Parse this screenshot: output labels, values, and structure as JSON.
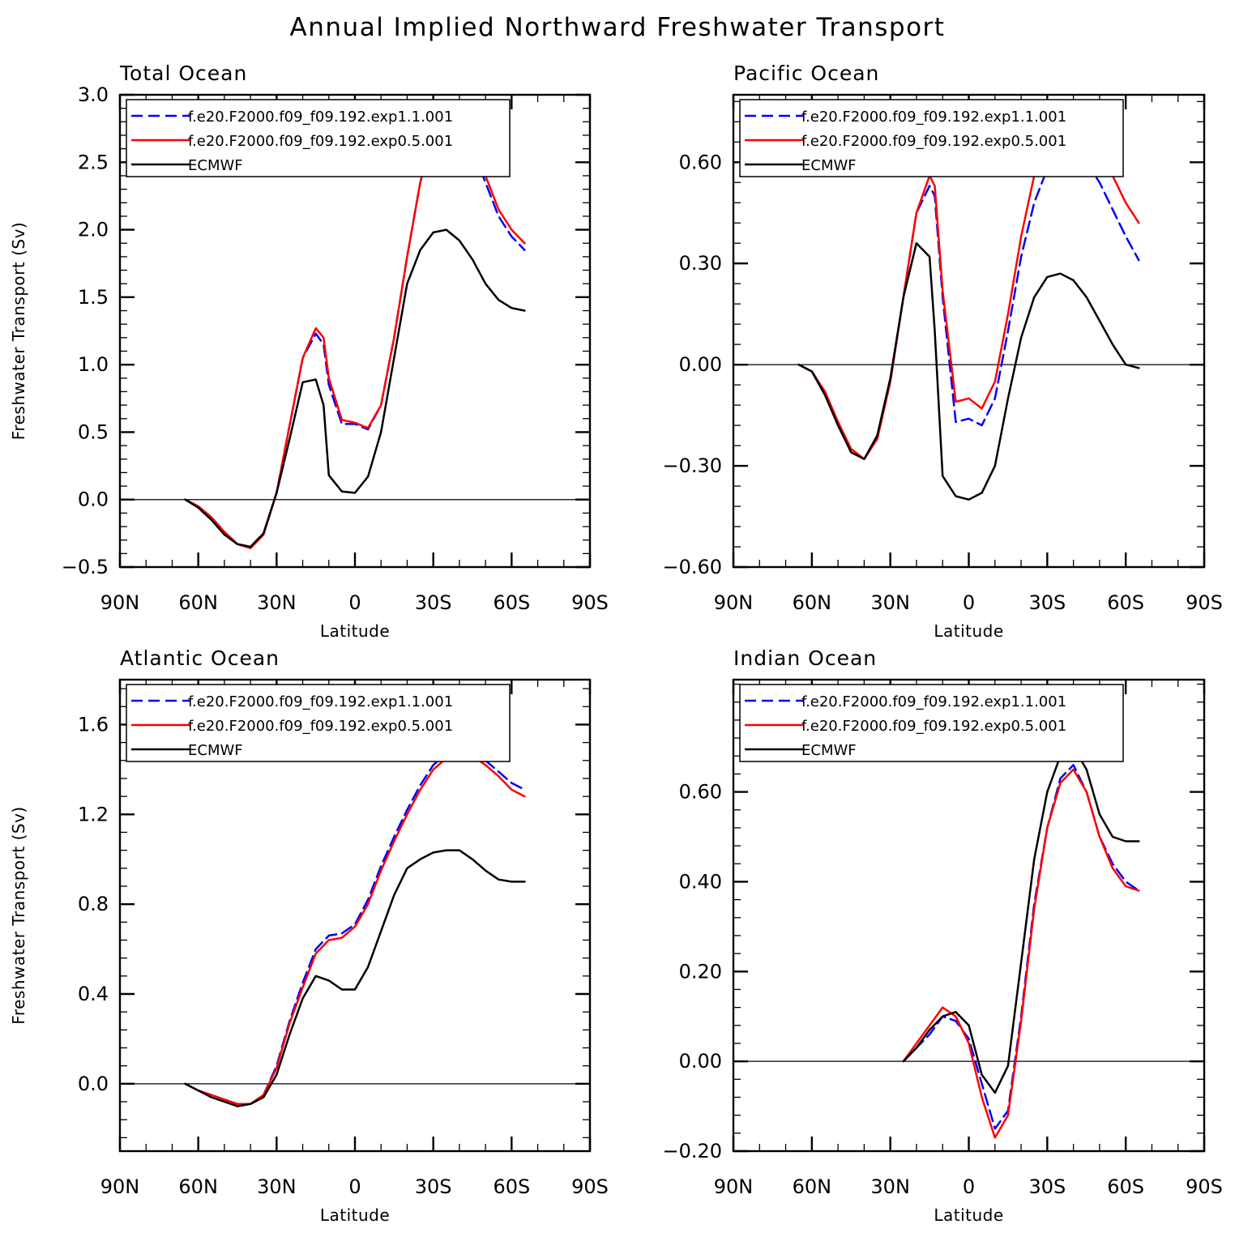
{
  "title": "Annual Implied Northward Freshwater Transport",
  "legend": [
    "f.e20.F2000.f09_f09.192.exp1.1.001",
    "f.e20.F2000.f09_f09.192.exp0.5.001",
    "ECMWF"
  ],
  "series_colors": [
    "#0000ff",
    "#ff0000",
    "#000000"
  ],
  "chart_data": [
    {
      "type": "line",
      "title": "Total Ocean",
      "xlabel": "Latitude",
      "ylabel": "Freshwater Transport (Sv)",
      "xlim": [
        90,
        -90
      ],
      "ylim": [
        -0.5,
        3.0
      ],
      "xticks": [
        90,
        60,
        30,
        0,
        -30,
        -60,
        -90
      ],
      "xtick_labels": [
        "90N",
        "60N",
        "30N",
        "0",
        "30S",
        "60S",
        "90S"
      ],
      "yticks": [
        -0.5,
        0.0,
        0.5,
        1.0,
        1.5,
        2.0,
        2.5,
        3.0
      ],
      "ytick_labels": [
        "−0.5",
        "0.0",
        "0.5",
        "1.0",
        "1.5",
        "2.0",
        "2.5",
        "3.0"
      ],
      "x": [
        65,
        60,
        55,
        50,
        45,
        40,
        35,
        30,
        25,
        20,
        15,
        12,
        10,
        5,
        0,
        -5,
        -10,
        -15,
        -20,
        -25,
        -30,
        -35,
        -40,
        -45,
        -50,
        -55,
        -60,
        -65
      ],
      "series": [
        {
          "name": "f.e20.F2000.f09_f09.192.exp1.1.001",
          "values": [
            0,
            -0.05,
            -0.13,
            -0.24,
            -0.33,
            -0.35,
            -0.25,
            0.05,
            0.55,
            1.05,
            1.23,
            1.15,
            0.85,
            0.56,
            0.56,
            0.52,
            0.7,
            1.2,
            1.8,
            2.35,
            2.7,
            2.8,
            2.78,
            2.6,
            2.35,
            2.1,
            1.95,
            1.85
          ]
        },
        {
          "name": "f.e20.F2000.f09_f09.192.exp0.5.001",
          "values": [
            0,
            -0.05,
            -0.13,
            -0.24,
            -0.33,
            -0.36,
            -0.26,
            0.05,
            0.55,
            1.05,
            1.27,
            1.2,
            0.9,
            0.59,
            0.57,
            0.53,
            0.7,
            1.2,
            1.8,
            2.35,
            2.75,
            2.86,
            2.85,
            2.66,
            2.4,
            2.15,
            2.0,
            1.9
          ]
        },
        {
          "name": "ECMWF",
          "values": [
            0,
            -0.06,
            -0.15,
            -0.26,
            -0.33,
            -0.35,
            -0.25,
            0.05,
            0.45,
            0.87,
            0.89,
            0.7,
            0.18,
            0.06,
            0.05,
            0.17,
            0.5,
            1.05,
            1.6,
            1.85,
            1.98,
            2.0,
            1.92,
            1.78,
            1.6,
            1.48,
            1.42,
            1.4
          ]
        }
      ]
    },
    {
      "type": "line",
      "title": "Pacific Ocean",
      "xlabel": "Latitude",
      "ylabel": "",
      "xlim": [
        90,
        -90
      ],
      "ylim": [
        -0.6,
        0.8
      ],
      "xticks": [
        90,
        60,
        30,
        0,
        -30,
        -60,
        -90
      ],
      "xtick_labels": [
        "90N",
        "60N",
        "30N",
        "0",
        "30S",
        "60S",
        "90S"
      ],
      "yticks": [
        -0.6,
        -0.3,
        0.0,
        0.3,
        0.6
      ],
      "ytick_labels": [
        "−0.60",
        "−0.30",
        "0.00",
        "0.30",
        "0.60"
      ],
      "x": [
        65,
        60,
        55,
        50,
        45,
        40,
        35,
        30,
        25,
        20,
        15,
        13,
        10,
        5,
        0,
        -5,
        -10,
        -15,
        -20,
        -25,
        -30,
        -35,
        -40,
        -45,
        -50,
        -55,
        -60,
        -65
      ],
      "series": [
        {
          "name": "f.e20.F2000.f09_f09.192.exp1.1.001",
          "values": [
            0,
            -0.02,
            -0.08,
            -0.17,
            -0.25,
            -0.28,
            -0.22,
            -0.05,
            0.2,
            0.45,
            0.53,
            0.5,
            0.2,
            -0.17,
            -0.16,
            -0.18,
            -0.1,
            0.1,
            0.32,
            0.48,
            0.58,
            0.63,
            0.63,
            0.6,
            0.54,
            0.46,
            0.38,
            0.31
          ]
        },
        {
          "name": "f.e20.F2000.f09_f09.192.exp0.5.001",
          "values": [
            0,
            -0.02,
            -0.08,
            -0.17,
            -0.25,
            -0.28,
            -0.22,
            -0.05,
            0.2,
            0.45,
            0.56,
            0.53,
            0.22,
            -0.11,
            -0.1,
            -0.13,
            -0.05,
            0.15,
            0.38,
            0.56,
            0.67,
            0.72,
            0.73,
            0.7,
            0.64,
            0.56,
            0.48,
            0.42
          ]
        },
        {
          "name": "ECMWF",
          "values": [
            0,
            -0.02,
            -0.09,
            -0.18,
            -0.26,
            -0.28,
            -0.21,
            -0.04,
            0.2,
            0.36,
            0.32,
            0.1,
            -0.33,
            -0.39,
            -0.4,
            -0.38,
            -0.3,
            -0.1,
            0.08,
            0.2,
            0.26,
            0.27,
            0.25,
            0.2,
            0.13,
            0.06,
            0.0,
            -0.01
          ]
        }
      ]
    },
    {
      "type": "line",
      "title": "Atlantic Ocean",
      "xlabel": "Latitude",
      "ylabel": "Freshwater Transport (Sv)",
      "xlim": [
        90,
        -90
      ],
      "ylim": [
        -0.3,
        1.8
      ],
      "xticks": [
        90,
        60,
        30,
        0,
        -30,
        -60,
        -90
      ],
      "xtick_labels": [
        "90N",
        "60N",
        "30N",
        "0",
        "30S",
        "60S",
        "90S"
      ],
      "yticks": [
        0.0,
        0.4,
        0.8,
        1.2,
        1.6
      ],
      "ytick_labels": [
        "0.0",
        "0.4",
        "0.8",
        "1.2",
        "1.6"
      ],
      "x": [
        65,
        60,
        55,
        50,
        45,
        40,
        35,
        30,
        25,
        20,
        15,
        10,
        5,
        0,
        -5,
        -10,
        -15,
        -20,
        -25,
        -30,
        -35,
        -40,
        -45,
        -50,
        -55,
        -60,
        -65
      ],
      "series": [
        {
          "name": "f.e20.F2000.f09_f09.192.exp1.1.001",
          "values": [
            0,
            -0.03,
            -0.05,
            -0.07,
            -0.09,
            -0.09,
            -0.05,
            0.08,
            0.28,
            0.45,
            0.6,
            0.66,
            0.67,
            0.71,
            0.82,
            0.97,
            1.1,
            1.22,
            1.33,
            1.42,
            1.47,
            1.5,
            1.48,
            1.44,
            1.39,
            1.34,
            1.31
          ]
        },
        {
          "name": "f.e20.F2000.f09_f09.192.exp0.5.001",
          "values": [
            0,
            -0.03,
            -0.05,
            -0.07,
            -0.09,
            -0.09,
            -0.05,
            0.07,
            0.27,
            0.43,
            0.58,
            0.64,
            0.65,
            0.7,
            0.8,
            0.95,
            1.08,
            1.2,
            1.31,
            1.4,
            1.45,
            1.48,
            1.46,
            1.42,
            1.37,
            1.31,
            1.28
          ]
        },
        {
          "name": "ECMWF",
          "values": [
            0,
            -0.03,
            -0.06,
            -0.08,
            -0.1,
            -0.09,
            -0.06,
            0.04,
            0.22,
            0.38,
            0.48,
            0.46,
            0.42,
            0.42,
            0.52,
            0.68,
            0.84,
            0.96,
            1.0,
            1.03,
            1.04,
            1.04,
            1.0,
            0.95,
            0.91,
            0.9,
            0.9
          ]
        }
      ]
    },
    {
      "type": "line",
      "title": "Indian Ocean",
      "xlabel": "Latitude",
      "ylabel": "",
      "xlim": [
        90,
        -90
      ],
      "ylim": [
        -0.2,
        0.85
      ],
      "xticks": [
        90,
        60,
        30,
        0,
        -30,
        -60,
        -90
      ],
      "xtick_labels": [
        "90N",
        "60N",
        "30N",
        "0",
        "30S",
        "60S",
        "90S"
      ],
      "yticks": [
        -0.2,
        0.0,
        0.2,
        0.4,
        0.6
      ],
      "ytick_labels": [
        "−0.20",
        "0.00",
        "0.20",
        "0.40",
        "0.60"
      ],
      "x": [
        25,
        20,
        15,
        10,
        5,
        0,
        -5,
        -10,
        -15,
        -20,
        -25,
        -30,
        -35,
        -40,
        -45,
        -50,
        -55,
        -60,
        -65
      ],
      "series": [
        {
          "name": "f.e20.F2000.f09_f09.192.exp1.1.001",
          "values": [
            0,
            0.03,
            0.06,
            0.1,
            0.09,
            0.05,
            -0.05,
            -0.15,
            -0.11,
            0.1,
            0.35,
            0.52,
            0.63,
            0.66,
            0.6,
            0.5,
            0.44,
            0.4,
            0.38
          ]
        },
        {
          "name": "f.e20.F2000.f09_f09.192.exp0.5.001",
          "values": [
            0,
            0.04,
            0.08,
            0.12,
            0.1,
            0.04,
            -0.08,
            -0.17,
            -0.12,
            0.09,
            0.34,
            0.52,
            0.62,
            0.65,
            0.6,
            0.5,
            0.43,
            0.39,
            0.38
          ]
        },
        {
          "name": "ECMWF",
          "values": [
            0,
            0.03,
            0.07,
            0.1,
            0.11,
            0.08,
            -0.03,
            -0.07,
            -0.01,
            0.22,
            0.45,
            0.6,
            0.68,
            0.7,
            0.65,
            0.55,
            0.5,
            0.49,
            0.49
          ]
        }
      ]
    }
  ]
}
